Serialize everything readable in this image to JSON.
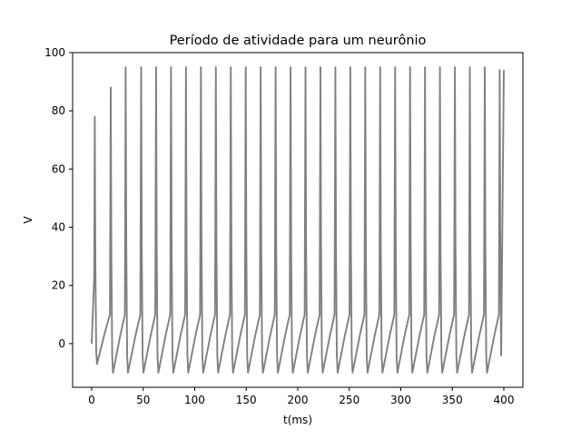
{
  "chart_data": {
    "type": "line",
    "title": "Período de atividade para um neurônio",
    "xlabel": "t(ms)",
    "ylabel": "V",
    "xlim": [
      -18.5,
      418.5
    ],
    "ylim": [
      -15,
      100
    ],
    "xticks": [
      0,
      50,
      100,
      150,
      200,
      250,
      300,
      350,
      400
    ],
    "yticks": [
      0,
      20,
      40,
      60,
      80,
      100
    ],
    "grid": false,
    "legend": "none",
    "series": [
      {
        "name": "",
        "color": "#808080",
        "spike_times": [
          3,
          18.5,
          33,
          48,
          62.5,
          77,
          91.5,
          106,
          120.5,
          135,
          149.5,
          164,
          178.5,
          193,
          207.5,
          222,
          236.5,
          251,
          265.5,
          280,
          294.5,
          309,
          323.5,
          338,
          352.5,
          367,
          381.5,
          396
        ],
        "spike_peaks": [
          78,
          88,
          95,
          95,
          95,
          95,
          95,
          95,
          95,
          95,
          95,
          95,
          95,
          95,
          95,
          95,
          95,
          95,
          95,
          95,
          95,
          95,
          95,
          95,
          95,
          95,
          95,
          94
        ],
        "trough_values": [
          -7,
          -10,
          -10,
          -10,
          -10,
          -10,
          -10,
          -10,
          -10,
          -10,
          -10,
          -10,
          -10,
          -10,
          -10,
          -10,
          -10,
          -10,
          -10,
          -10,
          -10,
          -10,
          -10,
          -10,
          -10,
          -10,
          -10,
          -10
        ],
        "pre_spike_value": 10,
        "start": [
          0,
          0
        ],
        "end": [
          400,
          94
        ]
      }
    ]
  }
}
